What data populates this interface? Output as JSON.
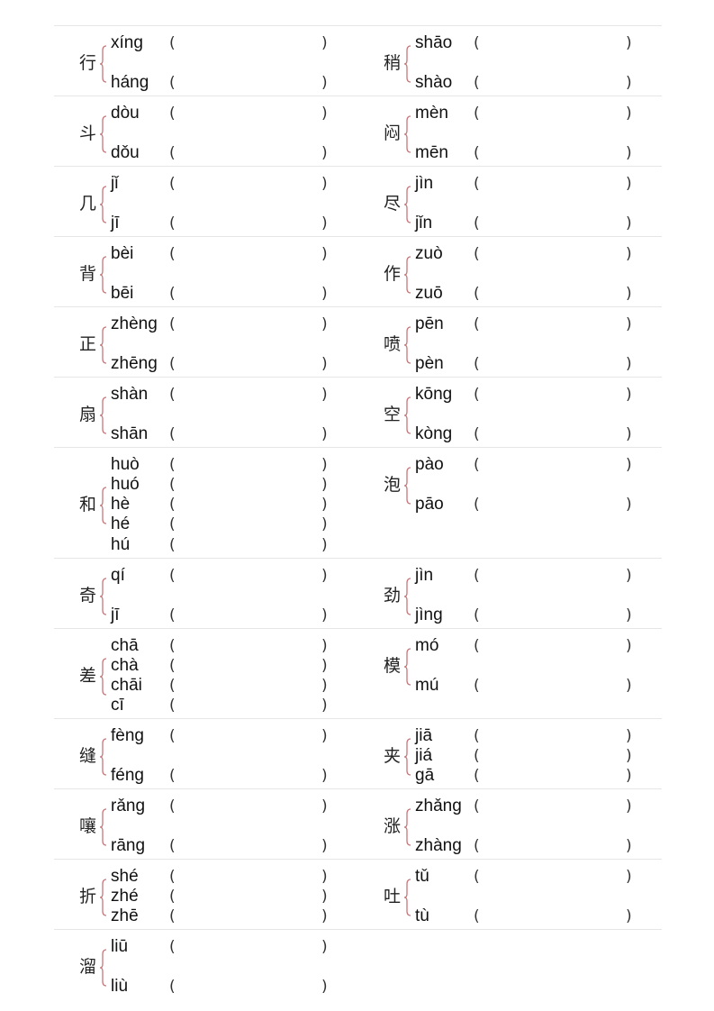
{
  "accent_color": "#c9767a",
  "open_paren": "(",
  "close_paren": ")",
  "rows": [
    {
      "left": {
        "char": "行",
        "readings": [
          "xíng",
          "háng"
        ]
      },
      "right": {
        "char": "稍",
        "readings": [
          "shāo",
          "shào"
        ]
      }
    },
    {
      "left": {
        "char": "斗",
        "readings": [
          "dòu",
          "dǒu"
        ]
      },
      "right": {
        "char": "闷",
        "readings": [
          "mèn",
          "mēn"
        ]
      }
    },
    {
      "left": {
        "char": "几",
        "readings": [
          "jǐ",
          "jī"
        ]
      },
      "right": {
        "char": "尽",
        "readings": [
          "jìn",
          "jǐn"
        ]
      }
    },
    {
      "left": {
        "char": "背",
        "readings": [
          "bèi",
          "bēi"
        ]
      },
      "right": {
        "char": "作",
        "readings": [
          "zuò",
          "zuō"
        ]
      }
    },
    {
      "left": {
        "char": "正",
        "readings": [
          "zhèng",
          "zhēng"
        ]
      },
      "right": {
        "char": "喷",
        "readings": [
          "pēn",
          "pèn"
        ]
      }
    },
    {
      "left": {
        "char": "扇",
        "readings": [
          "shàn",
          "shān"
        ]
      },
      "right": {
        "char": "空",
        "readings": [
          "kōng",
          "kòng"
        ]
      }
    },
    {
      "left": {
        "char": "和",
        "readings": [
          "huò",
          "huó",
          "hè",
          "hé",
          "hú"
        ]
      },
      "right": {
        "char": "泡",
        "readings": [
          "pào",
          "pāo"
        ]
      }
    },
    {
      "left": {
        "char": "奇",
        "readings": [
          "qí",
          "jī"
        ]
      },
      "right": {
        "char": "劲",
        "readings": [
          "jìn",
          "jìng"
        ]
      }
    },
    {
      "left": {
        "char": "差",
        "readings": [
          "chā",
          "chà",
          "chāi",
          "cī"
        ]
      },
      "right": {
        "char": "模",
        "readings": [
          "mó",
          "mú"
        ]
      }
    },
    {
      "left": {
        "char": "缝",
        "readings": [
          "fèng",
          "féng"
        ]
      },
      "right": {
        "char": "夹",
        "readings": [
          "jiā",
          "jiá",
          "gā"
        ]
      }
    },
    {
      "left": {
        "char": "嚷",
        "readings": [
          "rǎng",
          "rāng"
        ]
      },
      "right": {
        "char": "涨",
        "readings": [
          "zhǎng",
          "zhàng"
        ]
      }
    },
    {
      "left": {
        "char": "折",
        "readings": [
          "shé",
          "zhé",
          "zhē"
        ]
      },
      "right": {
        "char": "吐",
        "readings": [
          "tǔ",
          "tù"
        ]
      }
    },
    {
      "left": {
        "char": "溜",
        "readings": [
          "liū",
          "liù"
        ]
      },
      "right": null
    }
  ]
}
